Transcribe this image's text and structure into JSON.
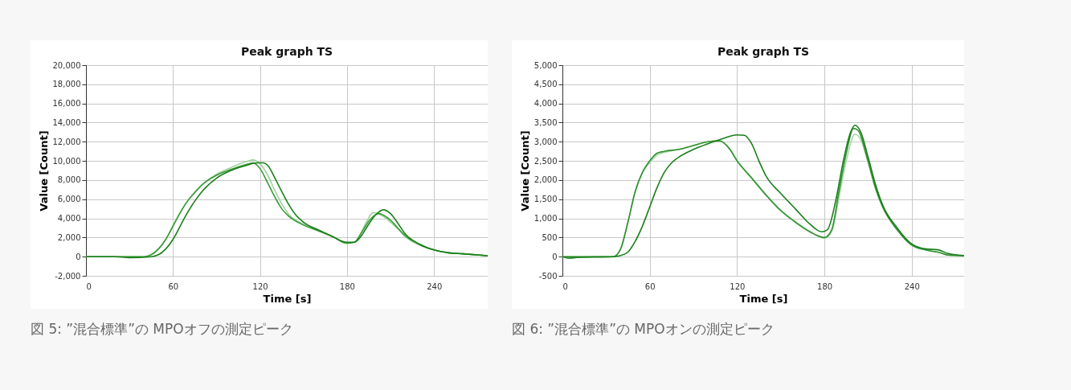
{
  "chart_data": [
    {
      "type": "line",
      "title": "Peak graph TS",
      "xlabel": "Time [s]",
      "ylabel": "Value [Count]",
      "xlim": [
        0,
        277
      ],
      "xticks": [
        0,
        60,
        120,
        180,
        240
      ],
      "ylim": [
        -2000,
        20000
      ],
      "yticks": [
        {
          "value": -2000,
          "label": "-2,000"
        },
        0,
        {
          "value": 2000,
          "label": "2,000"
        },
        {
          "value": 4000,
          "label": "4,000"
        },
        {
          "value": 6000,
          "label": "6,000"
        },
        {
          "value": 8000,
          "label": "8,000"
        },
        {
          "value": 10000,
          "label": "10,000"
        },
        {
          "value": 12000,
          "label": "12,000"
        },
        {
          "value": 14000,
          "label": "14,000"
        },
        {
          "value": 16000,
          "label": "16,000"
        },
        {
          "value": 18000,
          "label": "18,000"
        },
        {
          "value": 20000,
          "label": "20,000"
        }
      ],
      "grid": true,
      "legend": false,
      "annotations": [
        "図 5: ”混合標準”の MPOオフの測定ピーク"
      ],
      "series": [
        {
          "color": "#9fd49f",
          "x": [
            0,
            40,
            45,
            50,
            55,
            60,
            65,
            70,
            75,
            80,
            90,
            100,
            110,
            115,
            120,
            125,
            130,
            135,
            140,
            150,
            160,
            170,
            180,
            185,
            190,
            194,
            198,
            204,
            210,
            215,
            220,
            230,
            240,
            250,
            260,
            277
          ],
          "values": [
            0,
            0,
            200,
            800,
            1800,
            3200,
            4600,
            5800,
            6700,
            7500,
            8600,
            9300,
            9900,
            10100,
            9700,
            8600,
            7000,
            5500,
            4400,
            3400,
            2800,
            2100,
            1400,
            1500,
            2600,
            3800,
            4600,
            4300,
            3600,
            2900,
            2100,
            1200,
            700,
            400,
            300,
            100
          ]
        },
        {
          "color": "#3a9a3a",
          "x": [
            0,
            40,
            45,
            50,
            55,
            60,
            65,
            70,
            75,
            80,
            90,
            100,
            110,
            115,
            120,
            125,
            130,
            135,
            140,
            150,
            160,
            170,
            180,
            185,
            190,
            195,
            202,
            210,
            215,
            220,
            230,
            240,
            250,
            260,
            277
          ],
          "values": [
            0,
            0,
            200,
            800,
            1800,
            3200,
            4600,
            5800,
            6700,
            7500,
            8500,
            9100,
            9600,
            9800,
            9200,
            7800,
            6300,
            5000,
            4200,
            3300,
            2700,
            2100,
            1400,
            1500,
            2500,
            3700,
            4500,
            3800,
            3000,
            2200,
            1300,
            700,
            400,
            300,
            100
          ]
        },
        {
          "color": "#1a7f1a",
          "x": [
            0,
            20,
            30,
            45,
            50,
            55,
            60,
            65,
            70,
            75,
            80,
            90,
            100,
            110,
            118,
            122,
            126,
            130,
            135,
            140,
            145,
            150,
            160,
            170,
            180,
            185,
            190,
            195,
            200,
            205,
            210,
            215,
            220,
            230,
            240,
            250,
            260,
            277
          ],
          "values": [
            0,
            0,
            -100,
            0,
            200,
            800,
            1800,
            3200,
            4600,
            5800,
            6800,
            8200,
            9000,
            9500,
            9800,
            9800,
            9400,
            8300,
            6800,
            5400,
            4300,
            3600,
            2800,
            2100,
            1500,
            1500,
            2200,
            3400,
            4400,
            4900,
            4500,
            3500,
            2400,
            1300,
            700,
            400,
            300,
            100
          ]
        }
      ]
    },
    {
      "type": "line",
      "title": "Peak graph TS",
      "xlabel": "Time [s]",
      "ylabel": "Value [Count]",
      "xlim": [
        0,
        276
      ],
      "xticks": [
        0,
        60,
        120,
        180,
        240
      ],
      "ylim": [
        -500,
        5000
      ],
      "yticks": [
        -500,
        0,
        500,
        {
          "value": 1000,
          "label": "1,000"
        },
        {
          "value": 1500,
          "label": "1,500"
        },
        {
          "value": 2000,
          "label": "2,000"
        },
        {
          "value": 2500,
          "label": "2,500"
        },
        {
          "value": 3000,
          "label": "3,000"
        },
        {
          "value": 3500,
          "label": "3,500"
        },
        {
          "value": 4000,
          "label": "4,000"
        },
        {
          "value": 4500,
          "label": "4,500"
        },
        {
          "value": 5000,
          "label": "5,000"
        }
      ],
      "grid": true,
      "legend": false,
      "annotations": [
        "図 6: ”混合標準”の MPOオンの測定ピーク"
      ],
      "series": [
        {
          "color": "#a8d8a8",
          "x": [
            0,
            5,
            10,
            35,
            40,
            45,
            50,
            55,
            60,
            65,
            70,
            80,
            90,
            100,
            108,
            115,
            120,
            130,
            140,
            150,
            160,
            170,
            180,
            185,
            190,
            195,
            201,
            205,
            210,
            215,
            220,
            230,
            240,
            250,
            260,
            265,
            276
          ],
          "values": [
            0,
            -40,
            -20,
            0,
            200,
            900,
            1700,
            2200,
            2450,
            2650,
            2720,
            2800,
            2900,
            3000,
            3030,
            2820,
            2520,
            2070,
            1620,
            1220,
            920,
            660,
            480,
            650,
            1550,
            2500,
            3200,
            3050,
            2450,
            1800,
            1300,
            700,
            300,
            170,
            100,
            40,
            30
          ]
        },
        {
          "color": "#2e8f2e",
          "x": [
            0,
            5,
            10,
            35,
            40,
            45,
            50,
            55,
            60,
            65,
            70,
            80,
            90,
            100,
            108,
            115,
            120,
            130,
            140,
            150,
            160,
            170,
            180,
            185,
            190,
            195,
            200,
            203,
            210,
            215,
            220,
            230,
            240,
            250,
            260,
            265,
            276
          ],
          "values": [
            0,
            -40,
            -20,
            0,
            200,
            900,
            1700,
            2200,
            2500,
            2700,
            2750,
            2800,
            2900,
            3000,
            3020,
            2800,
            2500,
            2050,
            1600,
            1200,
            900,
            650,
            500,
            700,
            1700,
            2700,
            3350,
            3300,
            2500,
            1800,
            1300,
            700,
            300,
            170,
            100,
            40,
            30
          ]
        },
        {
          "color": "#1a7f1a",
          "x": [
            0,
            35,
            40,
            45,
            50,
            55,
            60,
            65,
            70,
            75,
            80,
            90,
            100,
            110,
            120,
            125,
            130,
            135,
            140,
            150,
            160,
            170,
            178,
            182,
            188,
            193,
            198,
            201,
            205,
            210,
            215,
            220,
            230,
            240,
            250,
            258,
            265,
            276
          ],
          "values": [
            0,
            0,
            30,
            120,
            400,
            800,
            1300,
            1800,
            2200,
            2450,
            2600,
            2800,
            2950,
            3080,
            3180,
            3170,
            2950,
            2500,
            2100,
            1650,
            1250,
            850,
            650,
            700,
            1500,
            2500,
            3250,
            3430,
            3250,
            2600,
            1900,
            1350,
            750,
            330,
            200,
            180,
            80,
            30
          ]
        }
      ]
    }
  ]
}
